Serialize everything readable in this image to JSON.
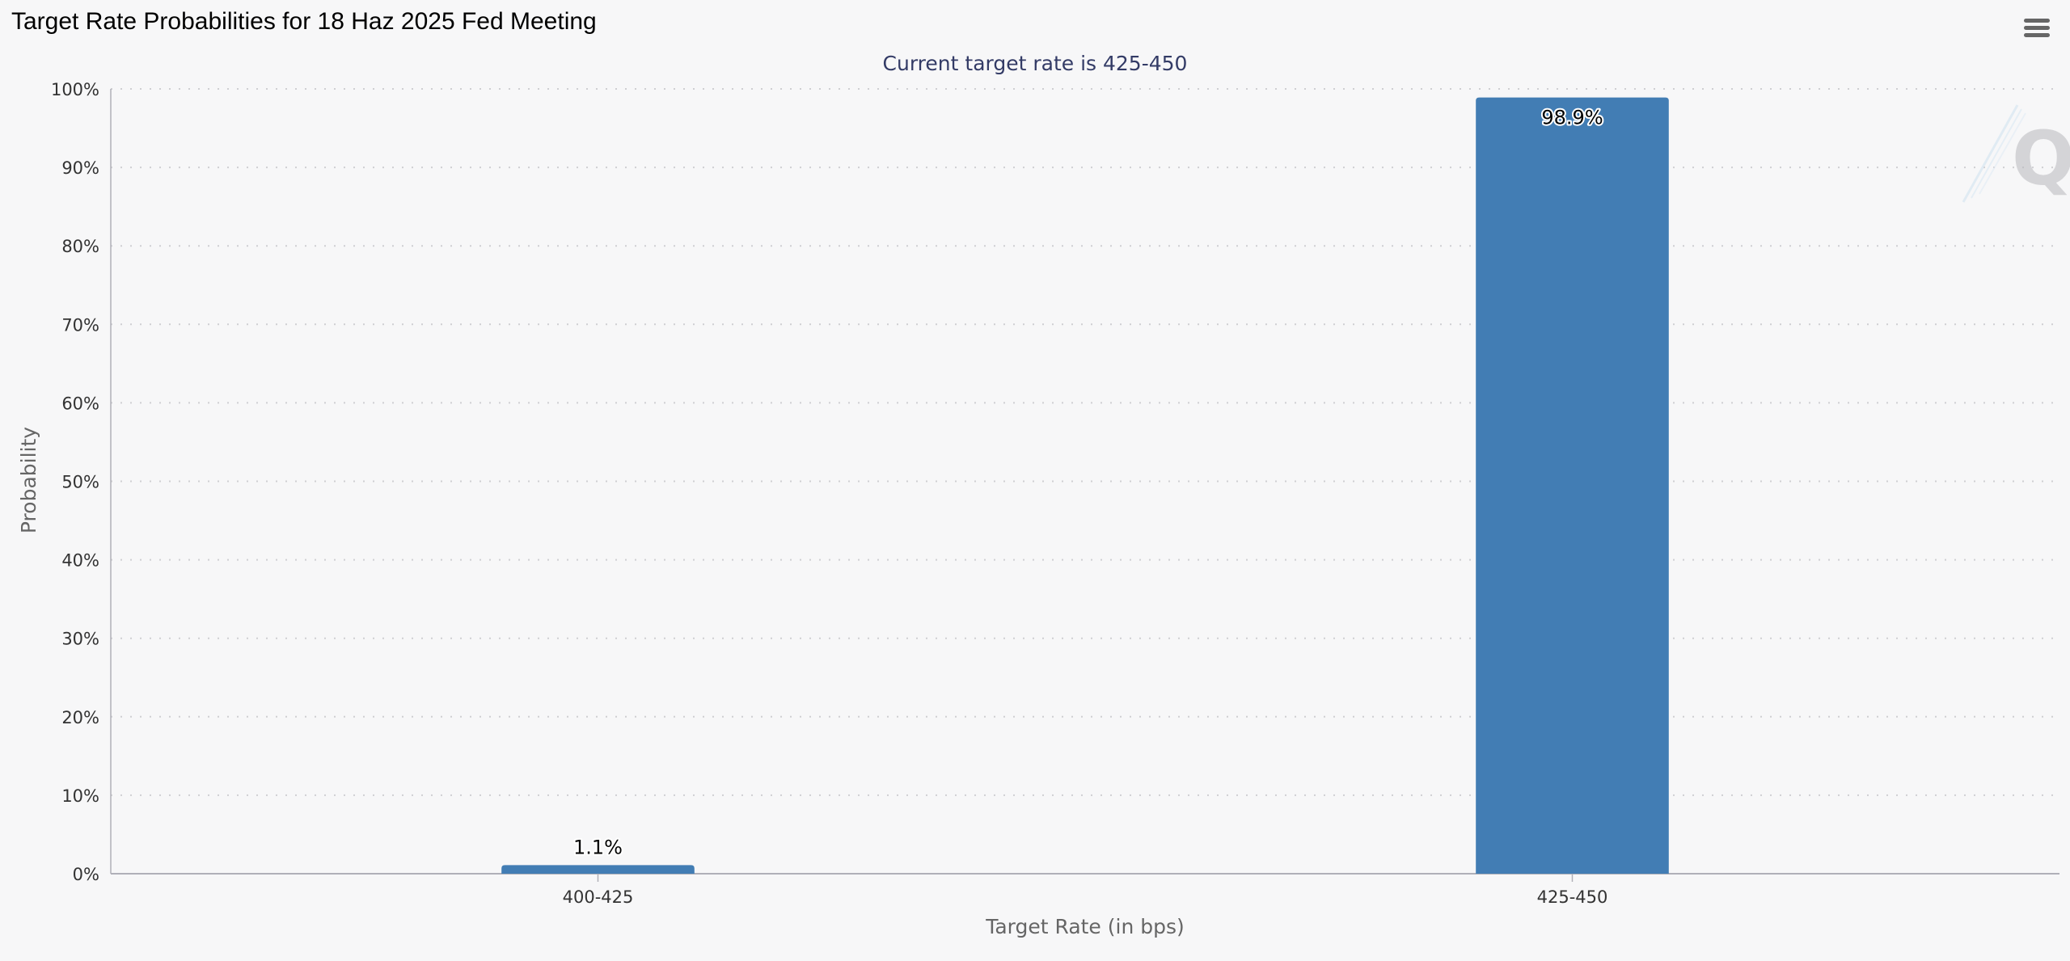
{
  "page": {
    "title": "Target Rate Probabilities for 18 Haz 2025 Fed Meeting",
    "menu_icon": "hamburger-menu-icon",
    "watermark_icon": "q-watermark-icon"
  },
  "colors": {
    "bar": "#427db4",
    "grid": "#cfcfd2",
    "axis": "#b0b0b8"
  },
  "chart_data": {
    "type": "bar",
    "title": "Target Rate Probabilities for 18 Haz 2025 Fed Meeting",
    "subtitle": "Current target rate is 425-450",
    "xlabel": "Target Rate (in bps)",
    "ylabel": "Probability",
    "categories": [
      "400-425",
      "425-450"
    ],
    "values": [
      1.1,
      98.9
    ],
    "data_labels": [
      "1.1%",
      "98.9%"
    ],
    "ylim": [
      0,
      100
    ],
    "yticks": [
      0,
      10,
      20,
      30,
      40,
      50,
      60,
      70,
      80,
      90,
      100
    ],
    "ytick_labels": [
      "0%",
      "10%",
      "20%",
      "30%",
      "40%",
      "50%",
      "60%",
      "70%",
      "80%",
      "90%",
      "100%"
    ],
    "grid": true
  }
}
